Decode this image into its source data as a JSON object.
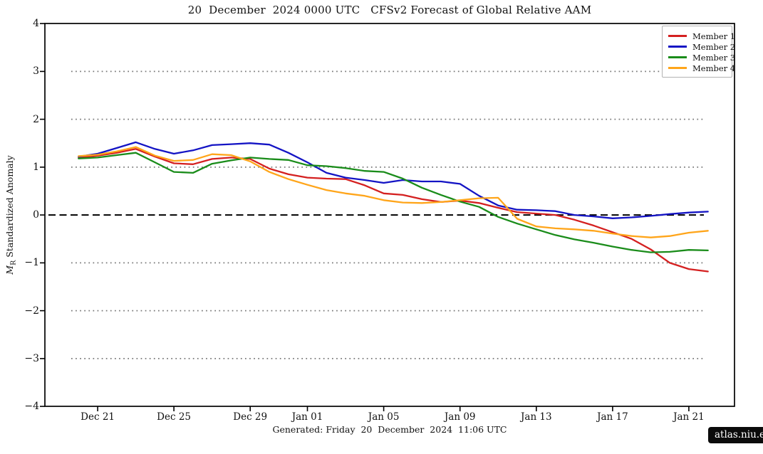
{
  "page": {
    "caption": "Generated: Friday  20  December  2024  11:06 UTC",
    "badge": "atlas.niu.edu"
  },
  "chart_data": {
    "type": "line",
    "title": "20  December  2024 0000 UTC   CFSv2 Forecast of Global Relative AAM",
    "ylabel": "M_R Standardized Anomaly",
    "ylabel_parts": {
      "var": "M",
      "sub": "R",
      "rest": " Standardized Anomaly"
    },
    "ylim": [
      -4,
      4
    ],
    "y_ticks": [
      4,
      3,
      2,
      1,
      0,
      -1,
      -2,
      -3,
      -4
    ],
    "gridlines": [
      3,
      2,
      1,
      -1,
      -2,
      -3
    ],
    "grid_style": "dotted",
    "zero_line": {
      "value": 0,
      "style": "dashed-black"
    },
    "legend_position": "upper right",
    "x_axis": {
      "unit": "days",
      "range_days": [
        0,
        33
      ],
      "tick_days": [
        1,
        5,
        9,
        12,
        16,
        20,
        24,
        28,
        32
      ],
      "tick_labels": [
        "Dec 21",
        "Dec 25",
        "Dec 29",
        "Jan 01",
        "Jan 05",
        "Jan 09",
        "Jan 13",
        "Jan 17",
        "Jan 21"
      ]
    },
    "series": [
      {
        "name": "Member 1",
        "color": "#d42020",
        "values": [
          1.2,
          1.24,
          1.3,
          1.38,
          1.22,
          1.08,
          1.06,
          1.17,
          1.2,
          1.17,
          0.97,
          0.85,
          0.78,
          0.76,
          0.75,
          0.62,
          0.45,
          0.42,
          0.33,
          0.27,
          0.3,
          0.25,
          0.15,
          0.06,
          0.03,
          0.0,
          -0.1,
          -0.22,
          -0.36,
          -0.5,
          -0.72,
          -1.0,
          -1.13,
          -1.18
        ]
      },
      {
        "name": "Member 2",
        "color": "#1414c4",
        "values": [
          1.22,
          1.28,
          1.4,
          1.52,
          1.38,
          1.28,
          1.35,
          1.46,
          1.48,
          1.5,
          1.47,
          1.3,
          1.1,
          0.88,
          0.78,
          0.73,
          0.67,
          0.73,
          0.7,
          0.7,
          0.65,
          0.4,
          0.2,
          0.11,
          0.1,
          0.08,
          0.0,
          -0.03,
          -0.07,
          -0.05,
          -0.02,
          0.02,
          0.05,
          0.07
        ]
      },
      {
        "name": "Member 3",
        "color": "#1a8c1a",
        "values": [
          1.18,
          1.2,
          1.25,
          1.3,
          1.1,
          0.9,
          0.88,
          1.07,
          1.14,
          1.2,
          1.17,
          1.15,
          1.04,
          1.02,
          0.98,
          0.92,
          0.9,
          0.76,
          0.57,
          0.42,
          0.28,
          0.17,
          -0.04,
          -0.18,
          -0.3,
          -0.42,
          -0.51,
          -0.58,
          -0.66,
          -0.73,
          -0.78,
          -0.77,
          -0.73,
          -0.74
        ]
      },
      {
        "name": "Member 4",
        "color": "#ffa51a",
        "values": [
          1.23,
          1.26,
          1.33,
          1.42,
          1.24,
          1.13,
          1.15,
          1.27,
          1.25,
          1.12,
          0.9,
          0.75,
          0.63,
          0.52,
          0.45,
          0.4,
          0.31,
          0.26,
          0.25,
          0.27,
          0.31,
          0.35,
          0.36,
          -0.08,
          -0.24,
          -0.28,
          -0.3,
          -0.33,
          -0.39,
          -0.44,
          -0.47,
          -0.44,
          -0.37,
          -0.33
        ]
      }
    ]
  }
}
